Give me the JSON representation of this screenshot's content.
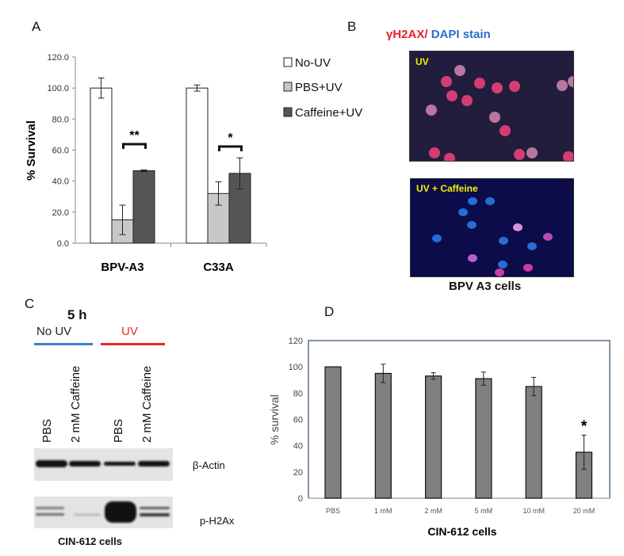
{
  "panel_letters": {
    "a": "A",
    "b": "B",
    "c": "C",
    "d": "D"
  },
  "chart_data": [
    {
      "panel": "A",
      "type": "bar",
      "categories": [
        "BPV-A3",
        "C33A"
      ],
      "ylabel": "% Survival",
      "ylim": [
        0,
        120
      ],
      "yticks": [
        "0.0",
        "20.0",
        "40.0",
        "60.0",
        "80.0",
        "100.0",
        "120.0"
      ],
      "legend_placement": "right",
      "series": [
        {
          "name": "No-UV",
          "color": "#ffffff",
          "values": [
            100,
            100
          ],
          "errors": [
            6.5,
            2
          ]
        },
        {
          "name": "PBS+UV",
          "color": "#c8c8c8",
          "values": [
            15,
            32
          ],
          "errors": [
            9.5,
            7.5
          ]
        },
        {
          "name": "Caffeine+UV",
          "color": "#555555",
          "values": [
            46.7,
            45
          ],
          "errors": [
            0.5,
            10
          ]
        }
      ],
      "annotations": [
        "**",
        "*"
      ],
      "grid": false
    },
    {
      "panel": "D",
      "type": "bar",
      "categories": [
        "PBS",
        "1 mM",
        "2 mM",
        "5 mM",
        "10 mM",
        "20 mM"
      ],
      "values": [
        100,
        95,
        93,
        91,
        85,
        35
      ],
      "errors": [
        0,
        7,
        2.5,
        5,
        7,
        13
      ],
      "color": "#808080",
      "xlabel": "CIN-612 cells",
      "ylabel": "% survival",
      "ylim": [
        0,
        120
      ],
      "yticks": [
        "0",
        "20",
        "40",
        "60",
        "80",
        "100",
        "120"
      ],
      "annotations": [
        "*"
      ],
      "grid": false
    }
  ],
  "panel_b": {
    "title_red": "γH2AX/",
    "title_blue": " DAPI stain",
    "image_top_label": "UV",
    "image_bottom_label": "UV + Caffeine",
    "caption": "BPV A3 cells",
    "colors": {
      "red": "#e8202a",
      "blue": "#2a6fd0",
      "label": "#f2f200"
    }
  },
  "panel_c": {
    "timepoint": "5 h",
    "group_no_uv": "No UV",
    "group_uv": "UV",
    "lanes": [
      "PBS",
      "2 mM Caffeine",
      "PBS",
      "2 mM Caffeine"
    ],
    "blot_labels": [
      "β-Actin",
      "p-H2Ax"
    ],
    "caption": "CIN-612 cells",
    "colors": {
      "no_uv": "#3a7fd0",
      "uv": "#e82828"
    }
  }
}
